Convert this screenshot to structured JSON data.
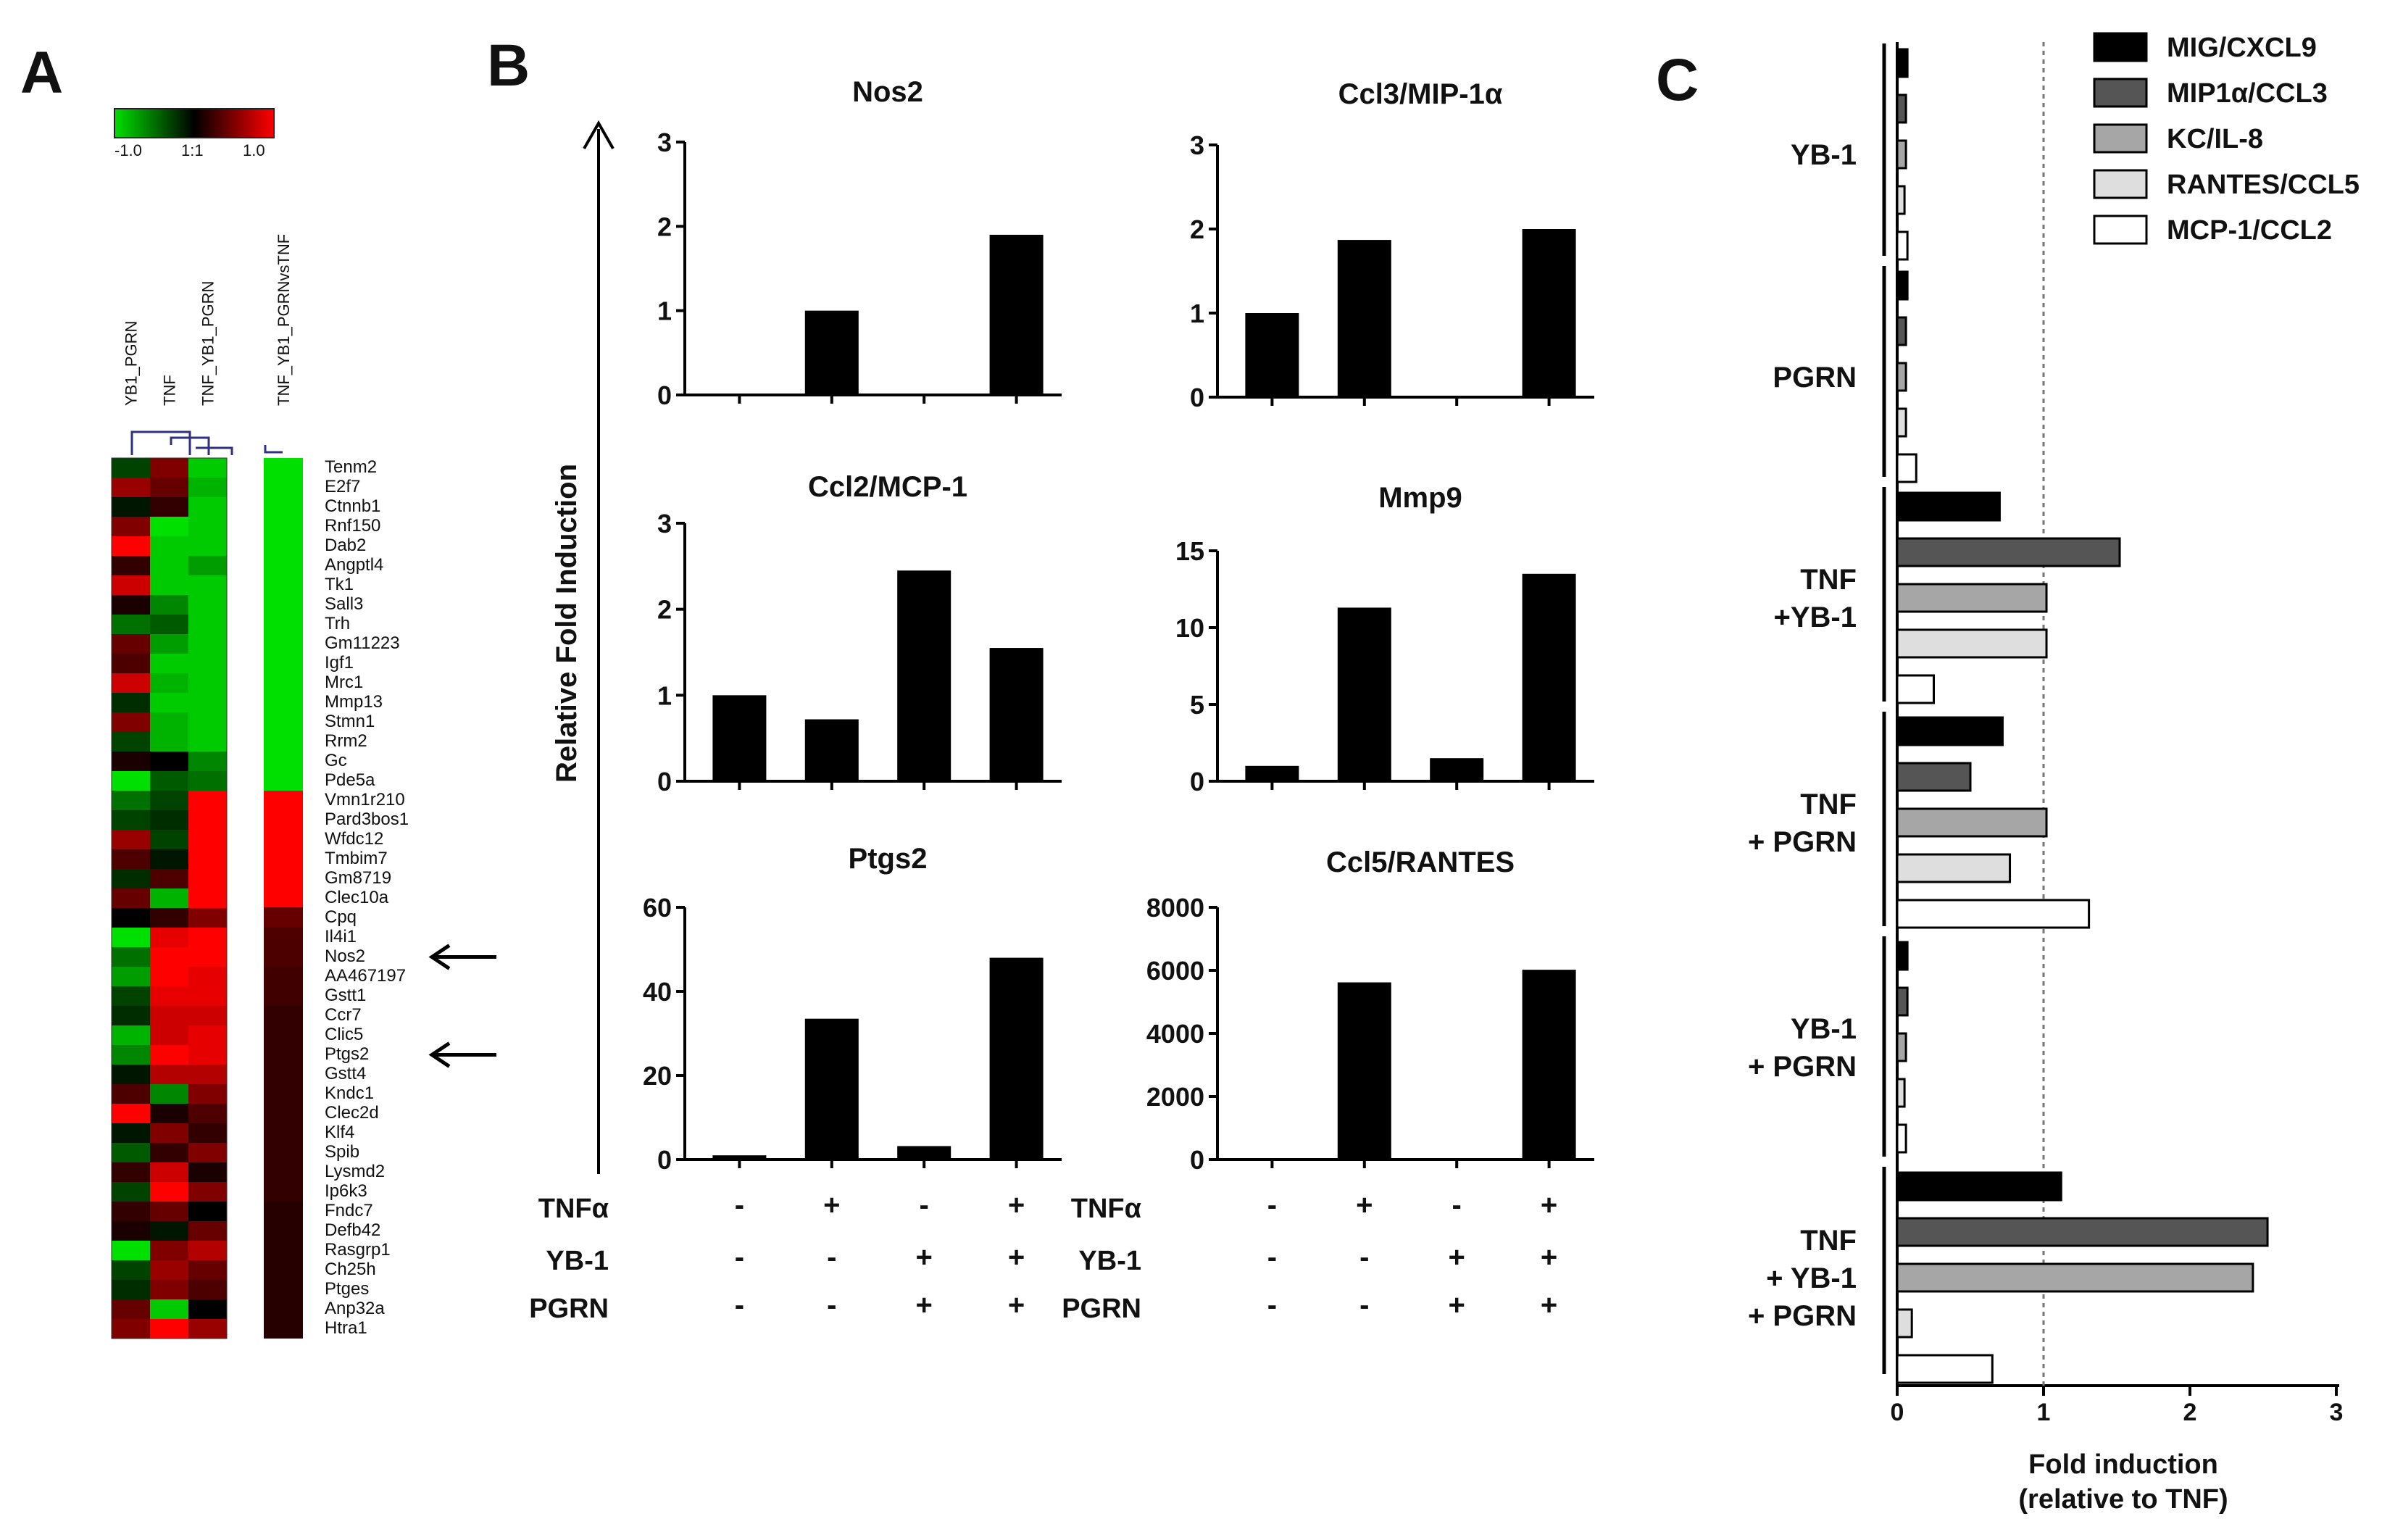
{
  "panel_labels": {
    "a": "A",
    "b": "B",
    "c": "C"
  },
  "chart_data": [
    {
      "id": "A",
      "type": "heatmap",
      "title": "",
      "color_scale": {
        "low_label": "-1.0",
        "mid_label": "1:1",
        "high_label": "1.0",
        "low_color": "#00e000",
        "mid_color": "#000000",
        "high_color": "#ff0000"
      },
      "columns": [
        "YB1_PGRN",
        "TNF",
        "TNF_YB1_PGRN"
      ],
      "comparison_column": "TNF_YB1_PGRNvsTNF",
      "genes": [
        "Tenm2",
        "E2f7",
        "Ctnnb1",
        "Rnf150",
        "Dab2",
        "Angptl4",
        "Tk1",
        "Sall3",
        "Trh",
        "Gm11223",
        "Igf1",
        "Mrc1",
        "Mmp13",
        "Stmn1",
        "Rrm2",
        "Gc",
        "Pde5a",
        "Vmn1r210",
        "Pard3bos1",
        "Wfdc12",
        "Tmbim7",
        "Gm8719",
        "Clec10a",
        "Cpq",
        "Il4i1",
        "Nos2",
        "AA467197",
        "Gstt1",
        "Ccr7",
        "Clic5",
        "Ptgs2",
        "Gstt4",
        "Kndc1",
        "Clec2d",
        "Klf4",
        "Spib",
        "Lysmd2",
        "Ip6k3",
        "Fndc7",
        "Defb42",
        "Rasgrp1",
        "Ch25h",
        "Ptges",
        "Anp32a",
        "Htra1"
      ],
      "values": [
        [
          -0.3,
          0.5,
          -0.9,
          -1.0
        ],
        [
          0.6,
          0.4,
          -0.8,
          -1.0
        ],
        [
          -0.1,
          0.2,
          -0.9,
          -1.0
        ],
        [
          0.5,
          -1.0,
          -0.9,
          -1.0
        ],
        [
          1.0,
          -0.9,
          -0.9,
          -1.0
        ],
        [
          0.2,
          -0.9,
          -0.7,
          -1.0
        ],
        [
          0.8,
          -0.9,
          -0.9,
          -1.0
        ],
        [
          0.1,
          -0.6,
          -0.9,
          -1.0
        ],
        [
          -0.5,
          -0.4,
          -0.9,
          -1.0
        ],
        [
          0.4,
          -0.7,
          -0.9,
          -1.0
        ],
        [
          0.3,
          -0.9,
          -0.9,
          -1.0
        ],
        [
          0.8,
          -0.8,
          -0.9,
          -1.0
        ],
        [
          -0.2,
          -0.9,
          -0.9,
          -1.0
        ],
        [
          0.5,
          -0.8,
          -0.9,
          -1.0
        ],
        [
          -0.3,
          -0.8,
          -0.9,
          -1.0
        ],
        [
          0.1,
          0.0,
          -0.6,
          -1.0
        ],
        [
          -1.0,
          -0.4,
          -0.5,
          -1.0
        ],
        [
          -0.5,
          -0.3,
          1.0,
          1.0
        ],
        [
          -0.3,
          -0.2,
          1.0,
          1.0
        ],
        [
          0.6,
          -0.3,
          1.0,
          1.0
        ],
        [
          0.3,
          -0.1,
          1.0,
          1.0
        ],
        [
          -0.2,
          0.3,
          1.0,
          1.0
        ],
        [
          0.4,
          -0.8,
          1.0,
          1.0
        ],
        [
          0.0,
          0.2,
          0.5,
          0.4
        ],
        [
          -1.0,
          0.9,
          1.0,
          0.3
        ],
        [
          -0.5,
          1.0,
          1.0,
          0.3
        ],
        [
          -0.7,
          1.0,
          0.9,
          0.25
        ],
        [
          -0.3,
          0.9,
          0.9,
          0.25
        ],
        [
          -0.2,
          0.8,
          0.8,
          0.2
        ],
        [
          -0.8,
          0.8,
          0.9,
          0.2
        ],
        [
          -0.6,
          1.0,
          0.9,
          0.2
        ],
        [
          -0.1,
          0.7,
          0.7,
          0.2
        ],
        [
          0.3,
          -0.6,
          0.5,
          0.2
        ],
        [
          1.0,
          0.1,
          0.3,
          0.2
        ],
        [
          -0.1,
          0.5,
          0.2,
          0.2
        ],
        [
          -0.4,
          0.2,
          0.5,
          0.2
        ],
        [
          0.2,
          0.8,
          0.1,
          0.2
        ],
        [
          -0.3,
          1.0,
          0.5,
          0.2
        ],
        [
          0.2,
          0.4,
          0.0,
          0.15
        ],
        [
          0.1,
          -0.1,
          0.4,
          0.15
        ],
        [
          -1.0,
          0.5,
          0.7,
          0.15
        ],
        [
          -0.3,
          0.6,
          0.4,
          0.15
        ],
        [
          -0.2,
          0.5,
          0.3,
          0.15
        ],
        [
          0.4,
          -0.9,
          0.0,
          0.15
        ],
        [
          0.5,
          1.0,
          0.6,
          0.15
        ]
      ],
      "annotated_genes": [
        "Nos2",
        "Ptgs2"
      ]
    },
    {
      "id": "B",
      "type": "bar",
      "ylabel": "Relative Fold Induction",
      "conditions": {
        "labels": [
          "TNFα",
          "YB-1",
          "PGRN"
        ],
        "rows": [
          [
            "-",
            "+",
            "-",
            "+"
          ],
          [
            "-",
            "-",
            "+",
            "+"
          ],
          [
            "-",
            "-",
            "+",
            "+"
          ]
        ]
      },
      "subplots": [
        {
          "title": "Nos2",
          "values": [
            0,
            1.0,
            0,
            1.9
          ],
          "ylim": [
            0,
            3
          ],
          "yticks": [
            "0",
            "1",
            "2",
            "3"
          ]
        },
        {
          "title": "Ccl3/MIP-1α",
          "values": [
            1.0,
            1.87,
            0,
            2.0
          ],
          "ylim": [
            0,
            3
          ],
          "yticks": [
            "0",
            "1",
            "2",
            "3"
          ]
        },
        {
          "title": "Ccl2/MCP-1",
          "values": [
            1.0,
            0.72,
            2.45,
            1.55
          ],
          "ylim": [
            0,
            3
          ],
          "yticks": [
            "0",
            "1",
            "2",
            "3"
          ]
        },
        {
          "title": "Mmp9",
          "values": [
            1.0,
            11.3,
            1.5,
            13.5
          ],
          "ylim": [
            0,
            15
          ],
          "yticks": [
            "0",
            "5",
            "10",
            "15"
          ]
        },
        {
          "title": "Ptgs2",
          "values": [
            1.0,
            33.5,
            3.2,
            48.0
          ],
          "ylim": [
            0,
            60
          ],
          "yticks": [
            "0",
            "20",
            "40",
            "60"
          ]
        },
        {
          "title": "Ccl5/RANTES",
          "values": [
            0,
            5620,
            0,
            6020
          ],
          "ylim": [
            0,
            8000
          ],
          "yticks": [
            "0",
            "2000",
            "4000",
            "6000",
            "8000"
          ]
        }
      ]
    },
    {
      "id": "C",
      "type": "bar",
      "orientation": "horizontal",
      "xlabel_lines": [
        "Fold induction",
        "(relative to TNF)"
      ],
      "xlim": [
        0,
        3
      ],
      "xticks": [
        "0",
        "1",
        "2",
        "3"
      ],
      "reference_line": 1,
      "legend": [
        {
          "name": "MIG/CXCL9",
          "color": "#000000"
        },
        {
          "name": "MIP1α/CCL3",
          "color": "#555555"
        },
        {
          "name": "KC/IL-8",
          "color": "#a6a6a6"
        },
        {
          "name": "RANTES/CCL5",
          "color": "#dedede"
        },
        {
          "name": "MCP-1/CCL2",
          "color": "#ffffff"
        }
      ],
      "groups": [
        {
          "label_lines": [
            "YB-1"
          ],
          "values": [
            0.07,
            0.06,
            0.06,
            0.05,
            0.07
          ]
        },
        {
          "label_lines": [
            "PGRN"
          ],
          "values": [
            0.07,
            0.06,
            0.06,
            0.06,
            0.13
          ]
        },
        {
          "label_lines": [
            "TNF",
            "+YB-1"
          ],
          "values": [
            0.7,
            1.52,
            1.02,
            1.02,
            0.25
          ]
        },
        {
          "label_lines": [
            "TNF",
            "+ PGRN"
          ],
          "values": [
            0.72,
            0.5,
            1.02,
            0.77,
            1.31
          ]
        },
        {
          "label_lines": [
            "YB-1",
            "+ PGRN"
          ],
          "values": [
            0.07,
            0.07,
            0.06,
            0.05,
            0.06
          ]
        },
        {
          "label_lines": [
            "TNF",
            "+ YB-1",
            "+ PGRN"
          ],
          "values": [
            1.12,
            2.53,
            2.43,
            0.1,
            0.65
          ]
        }
      ]
    }
  ]
}
